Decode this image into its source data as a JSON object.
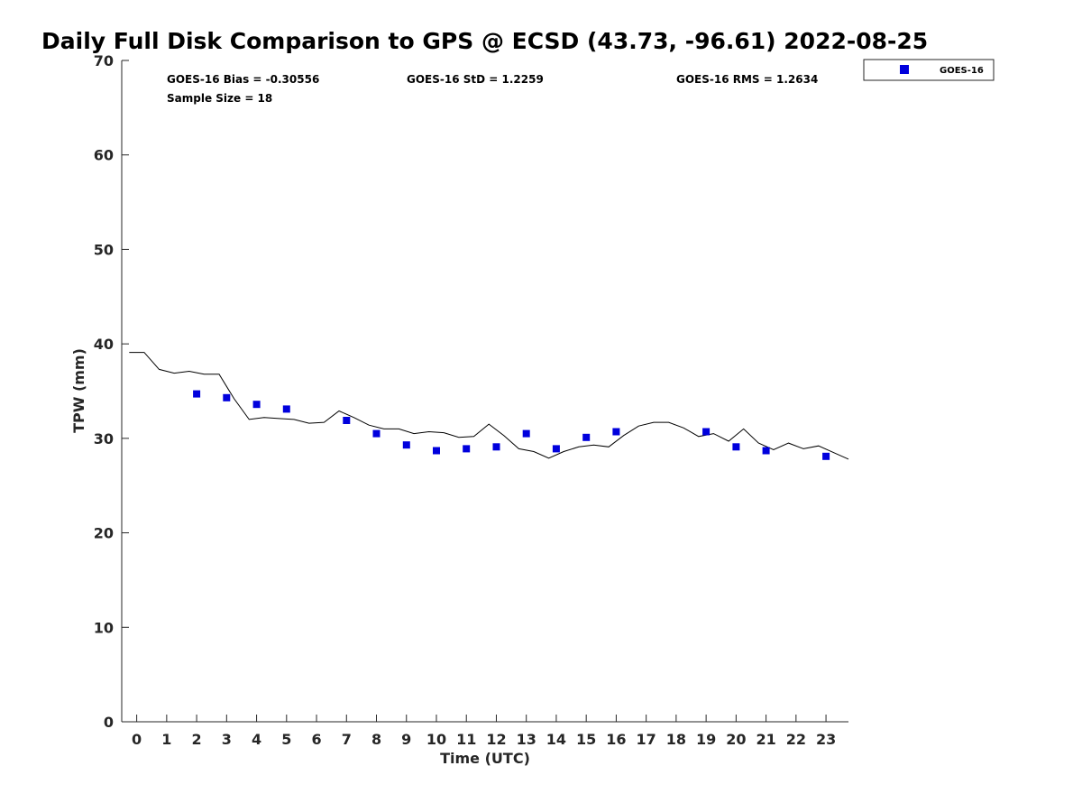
{
  "chart_data": {
    "type": "scatter",
    "title": "Daily Full Disk Comparison to GPS @ ECSD (43.73, -96.61) 2022-08-25",
    "xlabel": "Time (UTC)",
    "ylabel": "TPW (mm)",
    "xlim": [
      -0.5,
      23.75
    ],
    "ylim": [
      0,
      70
    ],
    "x_ticks": [
      "0",
      "1",
      "2",
      "3",
      "4",
      "5",
      "6",
      "7",
      "8",
      "9",
      "10",
      "11",
      "12",
      "13",
      "14",
      "15",
      "16",
      "17",
      "18",
      "19",
      "20",
      "21",
      "22",
      "23"
    ],
    "y_ticks": [
      "0",
      "10",
      "20",
      "30",
      "40",
      "50",
      "60",
      "70"
    ],
    "grid": false,
    "legend_position": "top-right-outside",
    "stats": {
      "bias": "GOES-16 Bias = -0.30556",
      "std": "GOES-16 StD = 1.2259",
      "rms": "GOES-16 RMS = 1.2634",
      "sample": "Sample Size = 18"
    },
    "series": [
      {
        "name": "GOES-16",
        "type": "scatter",
        "color": "#0000dd",
        "marker": "square",
        "x": [
          2,
          3,
          4,
          5,
          7,
          8,
          9,
          10,
          11,
          12,
          13,
          14,
          15,
          16,
          19,
          20,
          21,
          23
        ],
        "y": [
          34.7,
          34.3,
          33.6,
          33.1,
          31.9,
          30.5,
          29.3,
          28.7,
          28.9,
          29.1,
          30.5,
          28.9,
          30.1,
          30.7,
          30.7,
          29.1,
          28.7,
          28.1
        ]
      },
      {
        "type": "line",
        "color": "#000000",
        "x": [
          -0.25,
          0.25,
          0.75,
          1.25,
          1.75,
          2.25,
          2.75,
          3.25,
          3.75,
          4.25,
          4.75,
          5.25,
          5.75,
          6.25,
          6.75,
          7.25,
          7.75,
          8.25,
          8.75,
          9.25,
          9.75,
          10.25,
          10.75,
          11.25,
          11.75,
          12.25,
          12.75,
          13.25,
          13.75,
          14.25,
          14.75,
          15.25,
          15.75,
          16.25,
          16.75,
          17.25,
          17.75,
          18.25,
          18.75,
          19.25,
          19.75,
          20.25,
          20.75,
          21.25,
          21.75,
          22.25,
          22.75,
          23.25,
          23.75
        ],
        "y": [
          39.1,
          39.1,
          37.3,
          36.9,
          37.1,
          36.8,
          36.8,
          34.2,
          32.0,
          32.2,
          32.1,
          32.0,
          31.6,
          31.7,
          32.9,
          32.2,
          31.4,
          31.0,
          31.0,
          30.5,
          30.7,
          30.6,
          30.1,
          30.2,
          31.5,
          30.3,
          28.9,
          28.6,
          27.9,
          28.6,
          29.1,
          29.3,
          29.1,
          30.3,
          31.3,
          31.7,
          31.7,
          31.1,
          30.2,
          30.5,
          29.7,
          31.0,
          29.5,
          28.8,
          29.5,
          28.9,
          29.2,
          28.5,
          27.8
        ]
      }
    ]
  }
}
